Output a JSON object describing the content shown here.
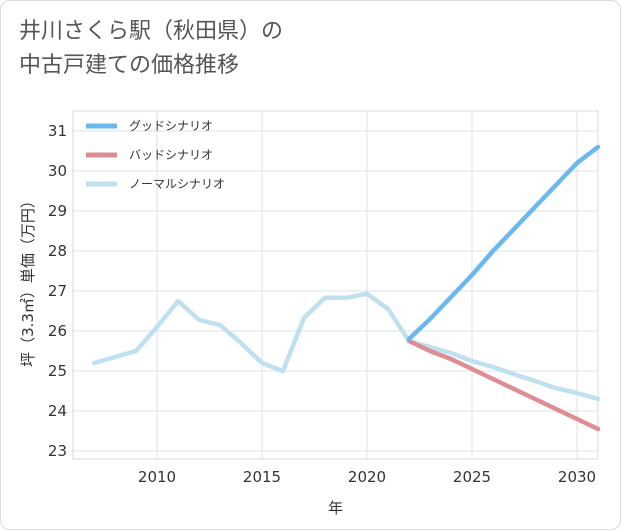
{
  "title_line1": "井川さくら駅（秋田県）の",
  "title_line2": "中古戸建ての価格推移",
  "chart_data": {
    "type": "line",
    "title": "井川さくら駅（秋田県）の中古戸建ての価格推移",
    "xlabel": "年",
    "ylabel": "坪（3.3㎡）単価（万円）",
    "xlim": [
      2006,
      2031
    ],
    "ylim": [
      22.8,
      31.5
    ],
    "xticks": [
      2010,
      2015,
      2020,
      2025,
      2030
    ],
    "yticks": [
      23,
      24,
      25,
      26,
      27,
      28,
      29,
      30,
      31
    ],
    "grid": true,
    "legend_position": "top-left",
    "series": [
      {
        "name": "グッドシナリオ",
        "color": "#6bb8ee",
        "x": [
          2022,
          2023,
          2024,
          2025,
          2026,
          2027,
          2028,
          2029,
          2030,
          2031
        ],
        "y": [
          25.8,
          26.3,
          26.85,
          27.4,
          28.0,
          28.55,
          29.1,
          29.65,
          30.2,
          30.6
        ]
      },
      {
        "name": "バッドシナリオ",
        "color": "#de8d94",
        "x": [
          2022,
          2023,
          2024,
          2025,
          2026,
          2027,
          2028,
          2029,
          2030,
          2031
        ],
        "y": [
          25.75,
          25.5,
          25.3,
          25.05,
          24.8,
          24.55,
          24.3,
          24.05,
          23.8,
          23.55
        ]
      },
      {
        "name": "ノーマルシナリオ",
        "color": "#bfe0f1",
        "x": [
          2007,
          2008,
          2009,
          2010,
          2011,
          2012,
          2013,
          2014,
          2015,
          2016,
          2017,
          2018,
          2019,
          2020,
          2021,
          2022,
          2023,
          2024,
          2025,
          2026,
          2027,
          2028,
          2029,
          2030,
          2031
        ],
        "y": [
          25.2,
          25.35,
          25.5,
          26.1,
          26.75,
          26.28,
          26.15,
          25.7,
          25.2,
          25.0,
          26.33,
          26.83,
          26.83,
          26.93,
          26.55,
          25.75,
          25.6,
          25.45,
          25.25,
          25.1,
          24.92,
          24.75,
          24.57,
          24.45,
          24.3
        ]
      }
    ]
  }
}
